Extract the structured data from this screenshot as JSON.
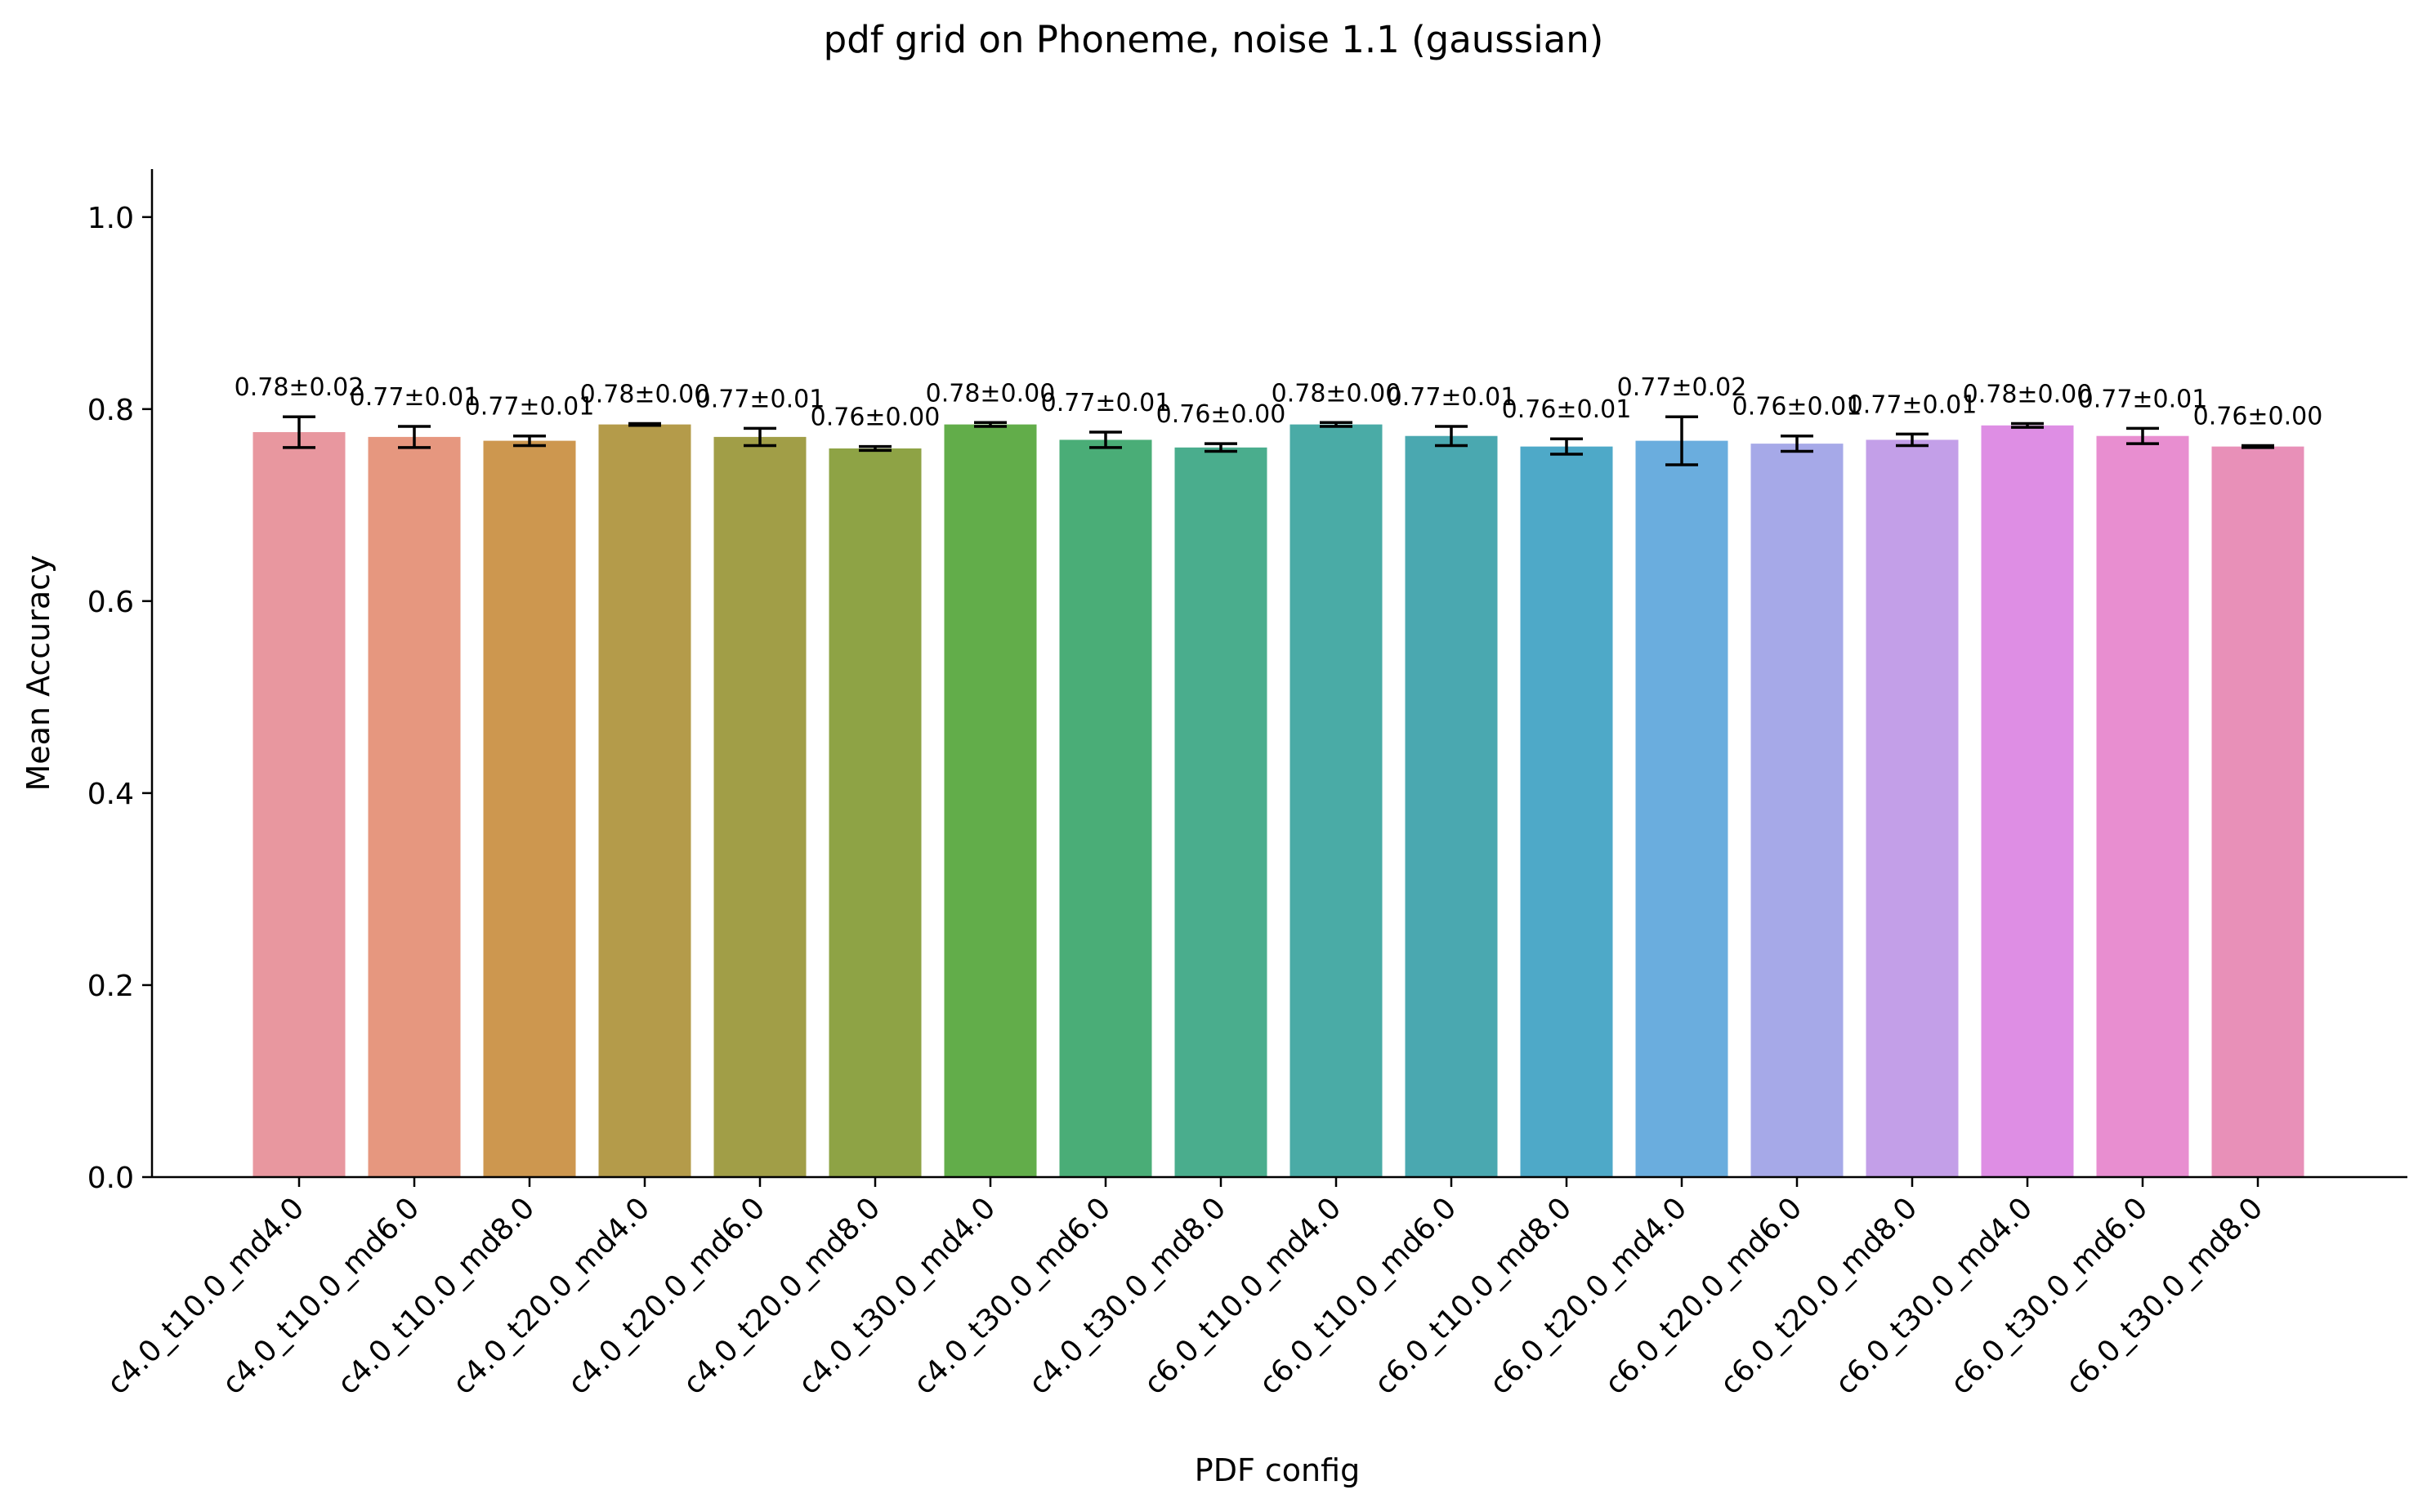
{
  "chart_data": {
    "type": "bar",
    "title": "pdf grid on Phoneme, noise 1.1 (gaussian)",
    "xlabel": "PDF config",
    "ylabel": "Mean Accuracy",
    "ylim": [
      0,
      1.05
    ],
    "yticks": [
      0.0,
      0.2,
      0.4,
      0.6,
      0.8,
      1.0
    ],
    "ytick_labels": [
      "0.0",
      "0.2",
      "0.4",
      "0.6",
      "0.8",
      "1.0"
    ],
    "grid": false,
    "categories": [
      "c4.0_t10.0_md4.0",
      "c4.0_t10.0_md6.0",
      "c4.0_t10.0_md8.0",
      "c4.0_t20.0_md4.0",
      "c4.0_t20.0_md6.0",
      "c4.0_t20.0_md8.0",
      "c4.0_t30.0_md4.0",
      "c4.0_t30.0_md6.0",
      "c4.0_t30.0_md8.0",
      "c6.0_t10.0_md4.0",
      "c6.0_t10.0_md6.0",
      "c6.0_t10.0_md8.0",
      "c6.0_t20.0_md4.0",
      "c6.0_t20.0_md6.0",
      "c6.0_t20.0_md8.0",
      "c6.0_t30.0_md4.0",
      "c6.0_t30.0_md6.0",
      "c6.0_t30.0_md8.0"
    ],
    "values": [
      0.776,
      0.771,
      0.767,
      0.784,
      0.771,
      0.759,
      0.784,
      0.768,
      0.76,
      0.784,
      0.772,
      0.761,
      0.767,
      0.764,
      0.768,
      0.783,
      0.772,
      0.761
    ],
    "errors": [
      0.016,
      0.011,
      0.005,
      0.001,
      0.009,
      0.002,
      0.002,
      0.008,
      0.004,
      0.002,
      0.01,
      0.008,
      0.025,
      0.008,
      0.006,
      0.002,
      0.008,
      0.001
    ],
    "value_labels": [
      "0.78±0.02",
      "0.77±0.01",
      "0.77±0.01",
      "0.78±0.00",
      "0.77±0.01",
      "0.76±0.00",
      "0.78±0.00",
      "0.77±0.01",
      "0.76±0.00",
      "0.78±0.00",
      "0.77±0.01",
      "0.76±0.01",
      "0.77±0.02",
      "0.76±0.01",
      "0.77±0.01",
      "0.78±0.00",
      "0.77±0.01",
      "0.76±0.00"
    ],
    "colors": [
      "#e8979f",
      "#e6977f",
      "#cd974f",
      "#b49b4a",
      "#a19e47",
      "#8ea345",
      "#62ad4a",
      "#4aad77",
      "#4aad8d",
      "#4aab a6",
      "#4aa8b0",
      "#4ea9c8",
      "#6aadde",
      "#a6a9e8",
      "#c39fe8",
      "#de8ee4",
      "#e88ed0",
      "#e890b8"
    ]
  }
}
